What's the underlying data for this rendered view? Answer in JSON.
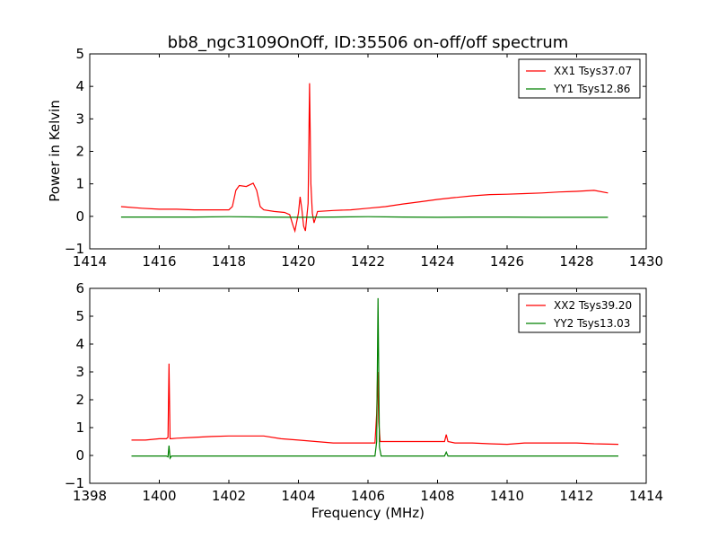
{
  "figure": {
    "title": "bb8_ngc3109OnOff, ID:35506 on-off/off spectrum",
    "ylabel": "Power in Kelvin",
    "xlabel": "Frequency (MHz)"
  },
  "chart_data": [
    {
      "type": "line",
      "title": "bb8_ngc3109OnOff, ID:35506 on-off/off spectrum",
      "ylabel": "Power in Kelvin",
      "xlabel": "",
      "xlim": [
        1414,
        1430
      ],
      "ylim": [
        -1,
        5
      ],
      "xticks": [
        "1414",
        "1416",
        "1418",
        "1420",
        "1422",
        "1424",
        "1426",
        "1428",
        "1430"
      ],
      "yticks": [
        "−1",
        "0",
        "1",
        "2",
        "3",
        "4",
        "5"
      ],
      "legend_position": "top-right",
      "series": [
        {
          "name": "XX1 Tsys37.07",
          "color": "#ff0000",
          "x": [
            1414.9,
            1415.5,
            1416,
            1416.5,
            1417,
            1417.5,
            1418,
            1418.1,
            1418.2,
            1418.3,
            1418.5,
            1418.7,
            1418.8,
            1418.9,
            1419,
            1419.3,
            1419.6,
            1419.75,
            1419.85,
            1419.9,
            1420.0,
            1420.05,
            1420.1,
            1420.15,
            1420.2,
            1420.28,
            1420.32,
            1420.36,
            1420.4,
            1420.45,
            1420.55,
            1421,
            1421.5,
            1422,
            1422.5,
            1423,
            1423.5,
            1424,
            1424.5,
            1425,
            1425.5,
            1426,
            1426.5,
            1427,
            1427.5,
            1428,
            1428.5,
            1428.9
          ],
          "y": [
            0.3,
            0.25,
            0.22,
            0.22,
            0.2,
            0.2,
            0.2,
            0.3,
            0.8,
            0.95,
            0.92,
            1.02,
            0.8,
            0.3,
            0.2,
            0.15,
            0.12,
            0.05,
            -0.3,
            -0.45,
            0.1,
            0.6,
            0.2,
            -0.3,
            -0.45,
            0.4,
            4.1,
            1.0,
            0.1,
            -0.2,
            0.15,
            0.18,
            0.2,
            0.25,
            0.3,
            0.38,
            0.45,
            0.52,
            0.58,
            0.63,
            0.67,
            0.68,
            0.7,
            0.72,
            0.75,
            0.77,
            0.8,
            0.72
          ]
        },
        {
          "name": "YY1 Tsys12.86",
          "color": "#008000",
          "x": [
            1414.9,
            1416,
            1417,
            1418,
            1419,
            1420,
            1421,
            1422,
            1423,
            1424,
            1425,
            1426,
            1427,
            1428,
            1428.9
          ],
          "y": [
            -0.02,
            -0.02,
            -0.02,
            -0.01,
            -0.02,
            -0.03,
            -0.02,
            -0.01,
            -0.02,
            -0.03,
            -0.02,
            -0.02,
            -0.03,
            -0.03,
            -0.03
          ]
        }
      ]
    },
    {
      "type": "line",
      "title": "",
      "ylabel": "",
      "xlabel": "Frequency (MHz)",
      "xlim": [
        1398,
        1414
      ],
      "ylim": [
        -1,
        6
      ],
      "xticks": [
        "1398",
        "1400",
        "1402",
        "1404",
        "1406",
        "1408",
        "1410",
        "1412",
        "1414"
      ],
      "yticks": [
        "−1",
        "0",
        "1",
        "2",
        "3",
        "4",
        "5",
        "6"
      ],
      "legend_position": "top-right",
      "series": [
        {
          "name": "XX2 Tsys39.20",
          "color": "#ff0000",
          "x": [
            1399.2,
            1399.6,
            1400.0,
            1400.2,
            1400.25,
            1400.28,
            1400.31,
            1400.35,
            1400.5,
            1401,
            1401.5,
            1402,
            1402.5,
            1403,
            1403.5,
            1404,
            1404.5,
            1405,
            1405.5,
            1406,
            1406.2,
            1406.25,
            1406.28,
            1406.31,
            1406.35,
            1406.5,
            1407,
            1407.5,
            1408,
            1408.2,
            1408.25,
            1408.3,
            1408.5,
            1409,
            1409.5,
            1410,
            1410.5,
            1411,
            1411.5,
            1412,
            1412.5,
            1413.2
          ],
          "y": [
            0.55,
            0.55,
            0.6,
            0.6,
            0.65,
            3.3,
            0.6,
            0.6,
            0.62,
            0.65,
            0.68,
            0.7,
            0.7,
            0.7,
            0.6,
            0.55,
            0.5,
            0.45,
            0.45,
            0.45,
            0.45,
            1.5,
            3.0,
            1.2,
            0.5,
            0.5,
            0.5,
            0.5,
            0.5,
            0.5,
            0.75,
            0.5,
            0.45,
            0.45,
            0.42,
            0.4,
            0.45,
            0.45,
            0.45,
            0.45,
            0.42,
            0.4
          ]
        },
        {
          "name": "YY2 Tsys13.03",
          "color": "#008000",
          "x": [
            1399.2,
            1400.0,
            1400.2,
            1400.25,
            1400.28,
            1400.31,
            1400.35,
            1401,
            1402,
            1403,
            1404,
            1405,
            1406,
            1406.2,
            1406.25,
            1406.29,
            1406.33,
            1406.38,
            1407,
            1408,
            1408.2,
            1408.25,
            1408.3,
            1409,
            1410,
            1411,
            1412,
            1413.2
          ],
          "y": [
            -0.02,
            -0.02,
            -0.02,
            -0.05,
            0.35,
            -0.1,
            -0.02,
            -0.02,
            -0.02,
            -0.02,
            -0.02,
            -0.02,
            -0.02,
            -0.02,
            0.5,
            5.65,
            0.3,
            -0.02,
            -0.02,
            -0.02,
            -0.02,
            0.12,
            -0.02,
            -0.02,
            -0.02,
            -0.02,
            -0.02,
            -0.02
          ]
        }
      ]
    }
  ]
}
